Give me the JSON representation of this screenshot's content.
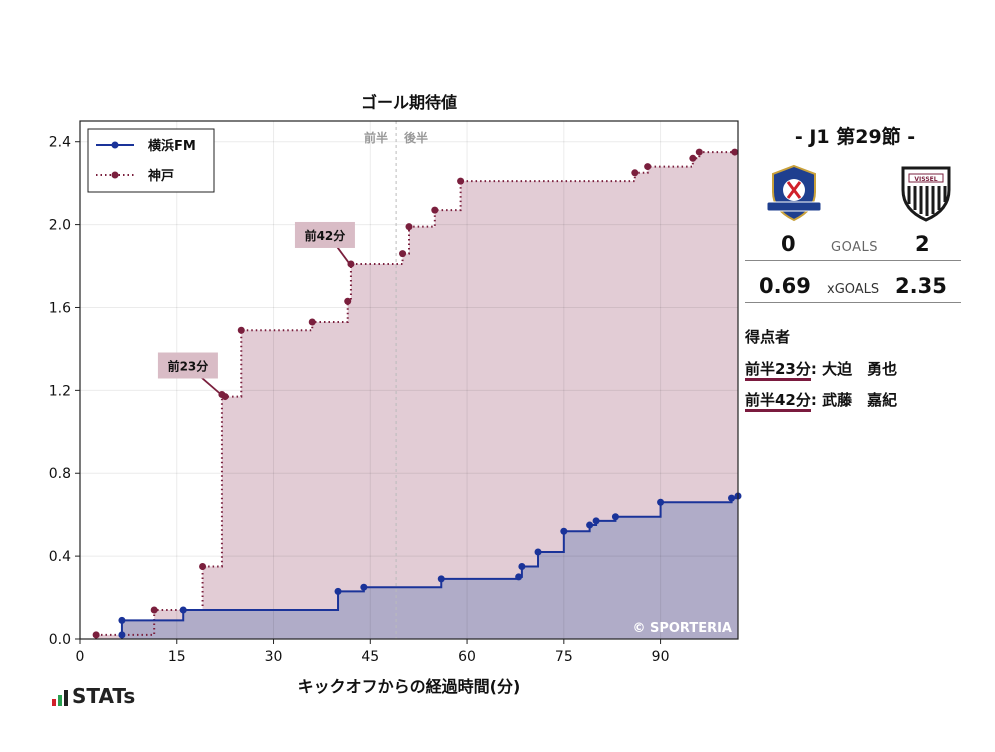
{
  "chart_data": {
    "type": "line",
    "title": "ゴール期待値",
    "xlabel": "キックオフからの経過時間(分)",
    "ylabel": "",
    "xlim": [
      0,
      102
    ],
    "ylim": [
      0,
      2.5
    ],
    "xticks": [
      0,
      15,
      30,
      45,
      60,
      75,
      90
    ],
    "yticks": [
      0.0,
      0.4,
      0.8,
      1.2,
      1.6,
      2.0,
      2.4
    ],
    "x_tick_labels": [
      "0",
      "15",
      "30",
      "45",
      "60",
      "75",
      "90"
    ],
    "y_tick_labels": [
      "0.0",
      "0.4",
      "0.8",
      "1.2",
      "1.6",
      "2.0",
      "2.4"
    ],
    "grid": true,
    "legend_position": "top-left",
    "half_divider_x": 49,
    "half_labels": [
      "前半",
      "後半"
    ],
    "series": [
      {
        "name": "横浜FM",
        "style": "solid",
        "color": "#1a3399",
        "fill": "#b0acc8",
        "points": [
          [
            6.5,
            0.02
          ],
          [
            6.5,
            0.09
          ],
          [
            16,
            0.14
          ],
          [
            40,
            0.23
          ],
          [
            44,
            0.25
          ],
          [
            56,
            0.29
          ],
          [
            68,
            0.3
          ],
          [
            68.5,
            0.35
          ],
          [
            71,
            0.42
          ],
          [
            75,
            0.52
          ],
          [
            79,
            0.55
          ],
          [
            80,
            0.57
          ],
          [
            83,
            0.59
          ],
          [
            90,
            0.66
          ],
          [
            101,
            0.68
          ],
          [
            102,
            0.69
          ]
        ]
      },
      {
        "name": "神戸",
        "style": "dotted",
        "color": "#7a1f3d",
        "fill": "#e2ccd5",
        "points": [
          [
            2.5,
            0.02
          ],
          [
            11.5,
            0.14
          ],
          [
            19,
            0.35
          ],
          [
            22,
            1.18
          ],
          [
            22.5,
            1.17
          ],
          [
            25,
            1.49
          ],
          [
            36,
            1.53
          ],
          [
            41.5,
            1.63
          ],
          [
            42,
            1.81
          ],
          [
            50,
            1.86
          ],
          [
            51,
            1.99
          ],
          [
            55,
            2.07
          ],
          [
            59,
            2.21
          ],
          [
            86,
            2.25
          ],
          [
            88,
            2.28
          ],
          [
            95,
            2.32
          ],
          [
            96,
            2.35
          ],
          [
            101.5,
            2.35
          ]
        ]
      }
    ],
    "annotations": [
      {
        "text": "前42分",
        "x": 42,
        "y": 1.81
      },
      {
        "text": "前23分",
        "x": 22,
        "y": 1.18
      }
    ],
    "watermark": "© SPORTERIA"
  },
  "colors": {
    "home": "#1a3399",
    "away": "#7a1f3d",
    "away_fill": "#e2ccd5",
    "home_fill": "#b0acc8",
    "annotation_bg": "#d9bcc6"
  },
  "match": {
    "round": "- J1 第29節 -",
    "home_goals": "0",
    "away_goals": "2",
    "goals_label": "GOALS",
    "home_xg": "0.69",
    "away_xg": "2.35",
    "xg_label": "xGOALS",
    "home_crest": "yokohama-fm-crest-icon",
    "away_crest": "vissel-kobe-crest-icon",
    "away_crest_text": "VISSEL"
  },
  "scorers": {
    "title": "得点者",
    "items": [
      {
        "time": "前半23分",
        "name": ": 大迫　勇也"
      },
      {
        "time": "前半42分",
        "name": ": 武藤　嘉紀"
      }
    ]
  },
  "brand": "STATs"
}
